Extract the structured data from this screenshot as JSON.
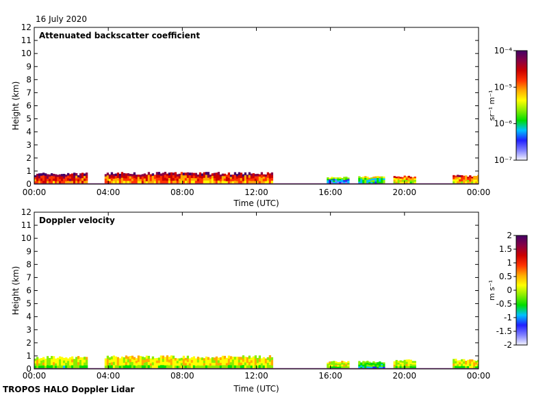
{
  "date": "16 July 2020",
  "footer": "TROPOS HALO Doppler Lidar",
  "palette_rainbow": [
    "#f4f4ff",
    "#8080ff",
    "#2020ff",
    "#00c0ff",
    "#00dd00",
    "#88ee00",
    "#ffff00",
    "#ffaa00",
    "#ff3300",
    "#cc0000",
    "#880044",
    "#440066"
  ],
  "panels": [
    {
      "title": "Attenuated backscatter coefficient",
      "xlabel": "Time (UTC)",
      "ylabel": "Height (km)",
      "colorbar": {
        "unit_label": "sr⁻¹ m⁻¹",
        "tick_labels": [
          "10⁻⁴",
          "10⁻⁵",
          "10⁻⁶",
          "10⁻⁷"
        ],
        "tick_values": [
          0.0001,
          1e-05,
          1e-06,
          1e-07
        ],
        "scale": "log",
        "range": [
          1e-07,
          0.0001
        ]
      },
      "chart_data": {
        "type": "heatmap",
        "x_ticks": [
          "00:00",
          "04:00",
          "08:00",
          "12:00",
          "16:00",
          "20:00",
          "00:00"
        ],
        "x_tick_hours": [
          0,
          4,
          8,
          12,
          16,
          20,
          24
        ],
        "xlim_hours": [
          0,
          24
        ],
        "y_ticks": [
          0,
          1,
          2,
          3,
          4,
          5,
          6,
          7,
          8,
          9,
          10,
          11,
          12
        ],
        "ylim_km": [
          0,
          12
        ],
        "segments": [
          {
            "t_start": 0.0,
            "t_end": 2.8,
            "top_km": 0.85,
            "intensity": 0.85
          },
          {
            "t_start": 3.8,
            "t_end": 12.8,
            "top_km": 0.9,
            "intensity": 0.8
          },
          {
            "t_start": 15.8,
            "t_end": 17.0,
            "top_km": 0.55,
            "intensity": 0.35
          },
          {
            "t_start": 17.5,
            "t_end": 18.9,
            "top_km": 0.6,
            "intensity": 0.45
          },
          {
            "t_start": 19.4,
            "t_end": 20.6,
            "top_km": 0.65,
            "intensity": 0.65
          },
          {
            "t_start": 22.6,
            "t_end": 24.0,
            "top_km": 0.7,
            "intensity": 0.7
          }
        ]
      }
    },
    {
      "title": "Doppler velocity",
      "xlabel": "Time (UTC)",
      "ylabel": "Height (km)",
      "colorbar": {
        "unit_label": "m s⁻¹",
        "tick_labels": [
          "2",
          "1.5",
          "1",
          "0.5",
          "0",
          "-0.5",
          "-1",
          "-1.5",
          "-2"
        ],
        "tick_values": [
          2,
          1.5,
          1,
          0.5,
          0,
          -0.5,
          -1,
          -1.5,
          -2
        ],
        "scale": "linear",
        "range": [
          -2,
          2
        ]
      },
      "chart_data": {
        "type": "heatmap",
        "x_ticks": [
          "00:00",
          "04:00",
          "08:00",
          "12:00",
          "16:00",
          "20:00",
          "00:00"
        ],
        "x_tick_hours": [
          0,
          4,
          8,
          12,
          16,
          20,
          24
        ],
        "xlim_hours": [
          0,
          24
        ],
        "y_ticks": [
          0,
          1,
          2,
          3,
          4,
          5,
          6,
          7,
          8,
          9,
          10,
          11,
          12
        ],
        "ylim_km": [
          0,
          12
        ],
        "segments": [
          {
            "t_start": 0.0,
            "t_end": 2.8,
            "top_km": 0.95,
            "velocity": 0.1
          },
          {
            "t_start": 3.8,
            "t_end": 12.8,
            "top_km": 1.0,
            "velocity": 0.2
          },
          {
            "t_start": 15.8,
            "t_end": 17.0,
            "top_km": 0.6,
            "velocity": 0.1
          },
          {
            "t_start": 17.5,
            "t_end": 18.9,
            "top_km": 0.6,
            "velocity": -0.4
          },
          {
            "t_start": 19.4,
            "t_end": 20.6,
            "top_km": 0.7,
            "velocity": 0.1
          },
          {
            "t_start": 22.6,
            "t_end": 24.0,
            "top_km": 0.75,
            "velocity": 0.15
          }
        ]
      }
    }
  ]
}
